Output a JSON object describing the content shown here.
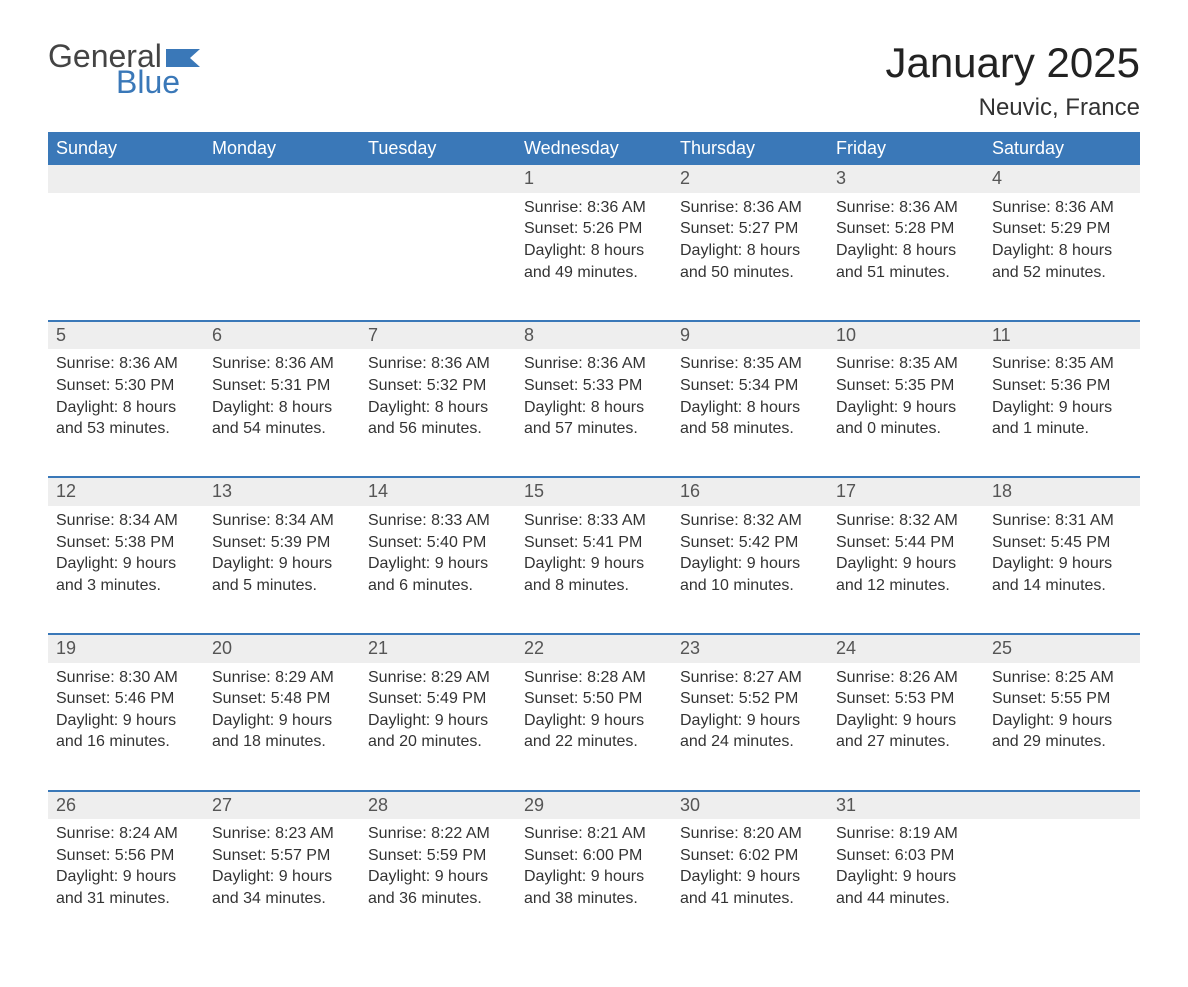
{
  "brand": {
    "word1": "General",
    "word2": "Blue",
    "flag_color": "#3a78b8",
    "word1_color": "#444444",
    "word2_color": "#3a78b8"
  },
  "header": {
    "month_title": "January 2025",
    "location": "Neuvic, France"
  },
  "colors": {
    "header_bg": "#3a78b8",
    "header_text": "#ffffff",
    "daynum_bg": "#eeeeee",
    "daynum_text": "#555555",
    "body_text": "#333333",
    "week_separator": "#3a78b8",
    "page_bg": "#ffffff"
  },
  "typography": {
    "title_fontsize": 42,
    "location_fontsize": 24,
    "dayheader_fontsize": 18,
    "daynum_fontsize": 18,
    "body_fontsize": 16
  },
  "day_headers": [
    "Sunday",
    "Monday",
    "Tuesday",
    "Wednesday",
    "Thursday",
    "Friday",
    "Saturday"
  ],
  "weeks": [
    [
      null,
      null,
      null,
      {
        "n": "1",
        "sunrise": "Sunrise: 8:36 AM",
        "sunset": "Sunset: 5:26 PM",
        "d1": "Daylight: 8 hours",
        "d2": "and 49 minutes."
      },
      {
        "n": "2",
        "sunrise": "Sunrise: 8:36 AM",
        "sunset": "Sunset: 5:27 PM",
        "d1": "Daylight: 8 hours",
        "d2": "and 50 minutes."
      },
      {
        "n": "3",
        "sunrise": "Sunrise: 8:36 AM",
        "sunset": "Sunset: 5:28 PM",
        "d1": "Daylight: 8 hours",
        "d2": "and 51 minutes."
      },
      {
        "n": "4",
        "sunrise": "Sunrise: 8:36 AM",
        "sunset": "Sunset: 5:29 PM",
        "d1": "Daylight: 8 hours",
        "d2": "and 52 minutes."
      }
    ],
    [
      {
        "n": "5",
        "sunrise": "Sunrise: 8:36 AM",
        "sunset": "Sunset: 5:30 PM",
        "d1": "Daylight: 8 hours",
        "d2": "and 53 minutes."
      },
      {
        "n": "6",
        "sunrise": "Sunrise: 8:36 AM",
        "sunset": "Sunset: 5:31 PM",
        "d1": "Daylight: 8 hours",
        "d2": "and 54 minutes."
      },
      {
        "n": "7",
        "sunrise": "Sunrise: 8:36 AM",
        "sunset": "Sunset: 5:32 PM",
        "d1": "Daylight: 8 hours",
        "d2": "and 56 minutes."
      },
      {
        "n": "8",
        "sunrise": "Sunrise: 8:36 AM",
        "sunset": "Sunset: 5:33 PM",
        "d1": "Daylight: 8 hours",
        "d2": "and 57 minutes."
      },
      {
        "n": "9",
        "sunrise": "Sunrise: 8:35 AM",
        "sunset": "Sunset: 5:34 PM",
        "d1": "Daylight: 8 hours",
        "d2": "and 58 minutes."
      },
      {
        "n": "10",
        "sunrise": "Sunrise: 8:35 AM",
        "sunset": "Sunset: 5:35 PM",
        "d1": "Daylight: 9 hours",
        "d2": "and 0 minutes."
      },
      {
        "n": "11",
        "sunrise": "Sunrise: 8:35 AM",
        "sunset": "Sunset: 5:36 PM",
        "d1": "Daylight: 9 hours",
        "d2": "and 1 minute."
      }
    ],
    [
      {
        "n": "12",
        "sunrise": "Sunrise: 8:34 AM",
        "sunset": "Sunset: 5:38 PM",
        "d1": "Daylight: 9 hours",
        "d2": "and 3 minutes."
      },
      {
        "n": "13",
        "sunrise": "Sunrise: 8:34 AM",
        "sunset": "Sunset: 5:39 PM",
        "d1": "Daylight: 9 hours",
        "d2": "and 5 minutes."
      },
      {
        "n": "14",
        "sunrise": "Sunrise: 8:33 AM",
        "sunset": "Sunset: 5:40 PM",
        "d1": "Daylight: 9 hours",
        "d2": "and 6 minutes."
      },
      {
        "n": "15",
        "sunrise": "Sunrise: 8:33 AM",
        "sunset": "Sunset: 5:41 PM",
        "d1": "Daylight: 9 hours",
        "d2": "and 8 minutes."
      },
      {
        "n": "16",
        "sunrise": "Sunrise: 8:32 AM",
        "sunset": "Sunset: 5:42 PM",
        "d1": "Daylight: 9 hours",
        "d2": "and 10 minutes."
      },
      {
        "n": "17",
        "sunrise": "Sunrise: 8:32 AM",
        "sunset": "Sunset: 5:44 PM",
        "d1": "Daylight: 9 hours",
        "d2": "and 12 minutes."
      },
      {
        "n": "18",
        "sunrise": "Sunrise: 8:31 AM",
        "sunset": "Sunset: 5:45 PM",
        "d1": "Daylight: 9 hours",
        "d2": "and 14 minutes."
      }
    ],
    [
      {
        "n": "19",
        "sunrise": "Sunrise: 8:30 AM",
        "sunset": "Sunset: 5:46 PM",
        "d1": "Daylight: 9 hours",
        "d2": "and 16 minutes."
      },
      {
        "n": "20",
        "sunrise": "Sunrise: 8:29 AM",
        "sunset": "Sunset: 5:48 PM",
        "d1": "Daylight: 9 hours",
        "d2": "and 18 minutes."
      },
      {
        "n": "21",
        "sunrise": "Sunrise: 8:29 AM",
        "sunset": "Sunset: 5:49 PM",
        "d1": "Daylight: 9 hours",
        "d2": "and 20 minutes."
      },
      {
        "n": "22",
        "sunrise": "Sunrise: 8:28 AM",
        "sunset": "Sunset: 5:50 PM",
        "d1": "Daylight: 9 hours",
        "d2": "and 22 minutes."
      },
      {
        "n": "23",
        "sunrise": "Sunrise: 8:27 AM",
        "sunset": "Sunset: 5:52 PM",
        "d1": "Daylight: 9 hours",
        "d2": "and 24 minutes."
      },
      {
        "n": "24",
        "sunrise": "Sunrise: 8:26 AM",
        "sunset": "Sunset: 5:53 PM",
        "d1": "Daylight: 9 hours",
        "d2": "and 27 minutes."
      },
      {
        "n": "25",
        "sunrise": "Sunrise: 8:25 AM",
        "sunset": "Sunset: 5:55 PM",
        "d1": "Daylight: 9 hours",
        "d2": "and 29 minutes."
      }
    ],
    [
      {
        "n": "26",
        "sunrise": "Sunrise: 8:24 AM",
        "sunset": "Sunset: 5:56 PM",
        "d1": "Daylight: 9 hours",
        "d2": "and 31 minutes."
      },
      {
        "n": "27",
        "sunrise": "Sunrise: 8:23 AM",
        "sunset": "Sunset: 5:57 PM",
        "d1": "Daylight: 9 hours",
        "d2": "and 34 minutes."
      },
      {
        "n": "28",
        "sunrise": "Sunrise: 8:22 AM",
        "sunset": "Sunset: 5:59 PM",
        "d1": "Daylight: 9 hours",
        "d2": "and 36 minutes."
      },
      {
        "n": "29",
        "sunrise": "Sunrise: 8:21 AM",
        "sunset": "Sunset: 6:00 PM",
        "d1": "Daylight: 9 hours",
        "d2": "and 38 minutes."
      },
      {
        "n": "30",
        "sunrise": "Sunrise: 8:20 AM",
        "sunset": "Sunset: 6:02 PM",
        "d1": "Daylight: 9 hours",
        "d2": "and 41 minutes."
      },
      {
        "n": "31",
        "sunrise": "Sunrise: 8:19 AM",
        "sunset": "Sunset: 6:03 PM",
        "d1": "Daylight: 9 hours",
        "d2": "and 44 minutes."
      },
      null
    ]
  ]
}
